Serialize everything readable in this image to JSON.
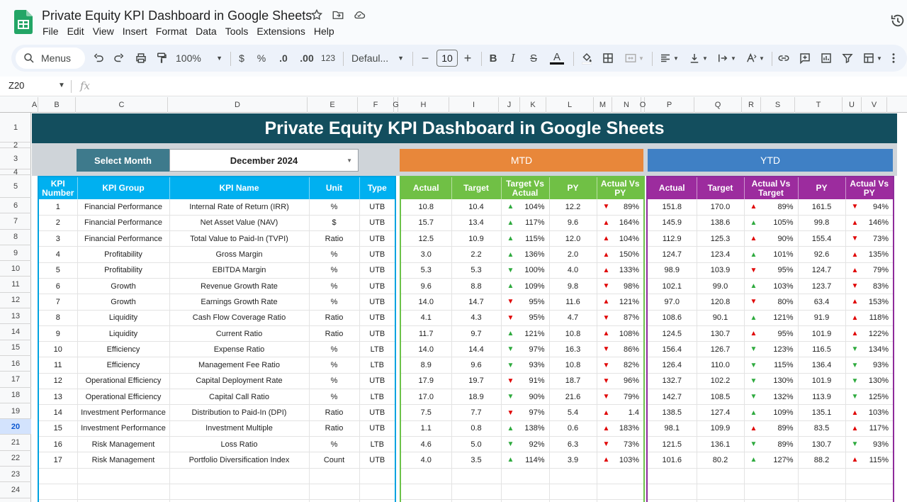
{
  "app": {
    "doc_title": "Private Equity KPI Dashboard in Google Sheets",
    "menus": [
      "File",
      "Edit",
      "View",
      "Insert",
      "Format",
      "Data",
      "Tools",
      "Extensions",
      "Help"
    ]
  },
  "toolbar": {
    "search_label": "Menus",
    "zoom": "100%",
    "currency": "$",
    "percent": "%",
    "decimal_decrease": ".0",
    "decimal_increase": ".00",
    "number_format": "123",
    "font": "Defaul...",
    "font_size": "10"
  },
  "formula_bar": {
    "cell_ref": "Z20",
    "fx": "fx"
  },
  "columns": [
    "A",
    "B",
    "C",
    "D",
    "E",
    "F",
    "G",
    "H",
    "I",
    "J",
    "K",
    "L",
    "M",
    "N",
    "O",
    "P",
    "Q",
    "R",
    "S",
    "T",
    "U",
    "V"
  ],
  "rows": [
    "1",
    "2",
    "3",
    "4",
    "5",
    "6",
    "7",
    "8",
    "9",
    "10",
    "11",
    "12",
    "13",
    "14",
    "15",
    "16",
    "17",
    "18",
    "19",
    "20",
    "21",
    "22",
    "23",
    "24"
  ],
  "active_row": "20",
  "dashboard": {
    "title": "Private Equity KPI Dashboard in Google Sheets",
    "select_month_label": "Select Month",
    "month": "December 2024",
    "mtd_label": "MTD",
    "ytd_label": "YTD",
    "kpi_headers": [
      "KPI Number",
      "KPI Group",
      "KPI Name",
      "Unit",
      "Type"
    ],
    "mtd_headers": [
      "Actual",
      "Target",
      "Target Vs Actual",
      "PY",
      "Actual Vs PY"
    ],
    "ytd_headers": [
      "Actual",
      "Target",
      "Actual Vs Target",
      "PY",
      "Actual Vs PY"
    ],
    "colors": {
      "banner": "#134e5e",
      "mtd": "#e8873a",
      "ytd": "#3f80c5",
      "kpi_header": "#00b0f0",
      "mtd_header": "#70c045",
      "ytd_header": "#9c2c9e",
      "up_red": "#e00000",
      "up_green": "#2eaa3e"
    },
    "kpis": [
      {
        "num": "1",
        "group": "Financial Performance",
        "name": "Internal Rate of Return (IRR)",
        "unit": "%",
        "type": "UTB",
        "m_actual": "10.8",
        "m_target": "10.4",
        "m_tva": "104%",
        "m_tva_dir": "up-green",
        "m_py": "12.2",
        "m_avp": "89%",
        "m_avp_dir": "down-red",
        "y_actual": "151.8",
        "y_target": "170.0",
        "y_avt": "89%",
        "y_avt_dir": "up-red",
        "y_py": "161.5",
        "y_avp": "94%",
        "y_avp_dir": "down-red"
      },
      {
        "num": "2",
        "group": "Financial Performance",
        "name": "Net Asset Value (NAV)",
        "unit": "$",
        "type": "UTB",
        "m_actual": "15.7",
        "m_target": "13.4",
        "m_tva": "117%",
        "m_tva_dir": "up-green",
        "m_py": "9.6",
        "m_avp": "164%",
        "m_avp_dir": "up-red",
        "y_actual": "145.9",
        "y_target": "138.6",
        "y_avt": "105%",
        "y_avt_dir": "up-green",
        "y_py": "99.8",
        "y_avp": "146%",
        "y_avp_dir": "up-red"
      },
      {
        "num": "3",
        "group": "Financial Performance",
        "name": "Total Value to Paid-In (TVPI)",
        "unit": "Ratio",
        "type": "UTB",
        "m_actual": "12.5",
        "m_target": "10.9",
        "m_tva": "115%",
        "m_tva_dir": "up-green",
        "m_py": "12.0",
        "m_avp": "104%",
        "m_avp_dir": "up-red",
        "y_actual": "112.9",
        "y_target": "125.3",
        "y_avt": "90%",
        "y_avt_dir": "up-red",
        "y_py": "155.4",
        "y_avp": "73%",
        "y_avp_dir": "down-red"
      },
      {
        "num": "4",
        "group": "Profitability",
        "name": "Gross Margin",
        "unit": "%",
        "type": "UTB",
        "m_actual": "3.0",
        "m_target": "2.2",
        "m_tva": "136%",
        "m_tva_dir": "up-green",
        "m_py": "2.0",
        "m_avp": "150%",
        "m_avp_dir": "up-red",
        "y_actual": "124.7",
        "y_target": "123.4",
        "y_avt": "101%",
        "y_avt_dir": "up-green",
        "y_py": "92.6",
        "y_avp": "135%",
        "y_avp_dir": "up-red"
      },
      {
        "num": "5",
        "group": "Profitability",
        "name": "EBITDA Margin",
        "unit": "%",
        "type": "UTB",
        "m_actual": "5.3",
        "m_target": "5.3",
        "m_tva": "100%",
        "m_tva_dir": "down-green",
        "m_py": "4.0",
        "m_avp": "133%",
        "m_avp_dir": "up-red",
        "y_actual": "98.9",
        "y_target": "103.9",
        "y_avt": "95%",
        "y_avt_dir": "down-red",
        "y_py": "124.7",
        "y_avp": "79%",
        "y_avp_dir": "up-red"
      },
      {
        "num": "6",
        "group": "Growth",
        "name": "Revenue Growth Rate",
        "unit": "%",
        "type": "UTB",
        "m_actual": "9.6",
        "m_target": "8.8",
        "m_tva": "109%",
        "m_tva_dir": "up-green",
        "m_py": "9.8",
        "m_avp": "98%",
        "m_avp_dir": "down-red",
        "y_actual": "102.1",
        "y_target": "99.0",
        "y_avt": "103%",
        "y_avt_dir": "up-green",
        "y_py": "123.7",
        "y_avp": "83%",
        "y_avp_dir": "down-red"
      },
      {
        "num": "7",
        "group": "Growth",
        "name": "Earnings Growth Rate",
        "unit": "%",
        "type": "UTB",
        "m_actual": "14.0",
        "m_target": "14.7",
        "m_tva": "95%",
        "m_tva_dir": "down-red",
        "m_py": "11.6",
        "m_avp": "121%",
        "m_avp_dir": "up-red",
        "y_actual": "97.0",
        "y_target": "120.8",
        "y_avt": "80%",
        "y_avt_dir": "down-red",
        "y_py": "63.4",
        "y_avp": "153%",
        "y_avp_dir": "up-red"
      },
      {
        "num": "8",
        "group": "Liquidity",
        "name": "Cash Flow Coverage Ratio",
        "unit": "Ratio",
        "type": "UTB",
        "m_actual": "4.1",
        "m_target": "4.3",
        "m_tva": "95%",
        "m_tva_dir": "down-red",
        "m_py": "4.7",
        "m_avp": "87%",
        "m_avp_dir": "down-red",
        "y_actual": "108.6",
        "y_target": "90.1",
        "y_avt": "121%",
        "y_avt_dir": "up-green",
        "y_py": "91.9",
        "y_avp": "118%",
        "y_avp_dir": "up-red"
      },
      {
        "num": "9",
        "group": "Liquidity",
        "name": "Current Ratio",
        "unit": "Ratio",
        "type": "UTB",
        "m_actual": "11.7",
        "m_target": "9.7",
        "m_tva": "121%",
        "m_tva_dir": "up-green",
        "m_py": "10.8",
        "m_avp": "108%",
        "m_avp_dir": "up-red",
        "y_actual": "124.5",
        "y_target": "130.7",
        "y_avt": "95%",
        "y_avt_dir": "up-red",
        "y_py": "101.9",
        "y_avp": "122%",
        "y_avp_dir": "up-red"
      },
      {
        "num": "10",
        "group": "Efficiency",
        "name": "Expense Ratio",
        "unit": "%",
        "type": "LTB",
        "m_actual": "14.0",
        "m_target": "14.4",
        "m_tva": "97%",
        "m_tva_dir": "down-green",
        "m_py": "16.3",
        "m_avp": "86%",
        "m_avp_dir": "down-red",
        "y_actual": "156.4",
        "y_target": "126.7",
        "y_avt": "123%",
        "y_avt_dir": "down-green",
        "y_py": "116.5",
        "y_avp": "134%",
        "y_avp_dir": "down-green"
      },
      {
        "num": "11",
        "group": "Efficiency",
        "name": "Management Fee Ratio",
        "unit": "%",
        "type": "LTB",
        "m_actual": "8.9",
        "m_target": "9.6",
        "m_tva": "93%",
        "m_tva_dir": "down-green",
        "m_py": "10.8",
        "m_avp": "82%",
        "m_avp_dir": "down-red",
        "y_actual": "126.4",
        "y_target": "110.0",
        "y_avt": "115%",
        "y_avt_dir": "down-green",
        "y_py": "136.4",
        "y_avp": "93%",
        "y_avp_dir": "down-green"
      },
      {
        "num": "12",
        "group": "Operational Efficiency",
        "name": "Capital Deployment Rate",
        "unit": "%",
        "type": "UTB",
        "m_actual": "17.9",
        "m_target": "19.7",
        "m_tva": "91%",
        "m_tva_dir": "down-red",
        "m_py": "18.7",
        "m_avp": "96%",
        "m_avp_dir": "down-red",
        "y_actual": "132.7",
        "y_target": "102.2",
        "y_avt": "130%",
        "y_avt_dir": "down-green",
        "y_py": "101.9",
        "y_avp": "130%",
        "y_avp_dir": "down-green"
      },
      {
        "num": "13",
        "group": "Operational Efficiency",
        "name": "Capital Call Ratio",
        "unit": "%",
        "type": "LTB",
        "m_actual": "17.0",
        "m_target": "18.9",
        "m_tva": "90%",
        "m_tva_dir": "down-green",
        "m_py": "21.6",
        "m_avp": "79%",
        "m_avp_dir": "down-red",
        "y_actual": "142.7",
        "y_target": "108.5",
        "y_avt": "132%",
        "y_avt_dir": "down-green",
        "y_py": "113.9",
        "y_avp": "125%",
        "y_avp_dir": "down-green"
      },
      {
        "num": "14",
        "group": "Investment Performance",
        "name": "Distribution to Paid-In (DPI)",
        "unit": "Ratio",
        "type": "UTB",
        "m_actual": "7.5",
        "m_target": "7.7",
        "m_tva": "97%",
        "m_tva_dir": "down-red",
        "m_py": "5.4",
        "m_avp": "1.4",
        "m_avp_dir": "up-red",
        "y_actual": "138.5",
        "y_target": "127.4",
        "y_avt": "109%",
        "y_avt_dir": "up-green",
        "y_py": "135.1",
        "y_avp": "103%",
        "y_avp_dir": "up-red"
      },
      {
        "num": "15",
        "group": "Investment Performance",
        "name": "Investment Multiple",
        "unit": "Ratio",
        "type": "UTB",
        "m_actual": "1.1",
        "m_target": "0.8",
        "m_tva": "138%",
        "m_tva_dir": "up-green",
        "m_py": "0.6",
        "m_avp": "183%",
        "m_avp_dir": "up-red",
        "y_actual": "98.1",
        "y_target": "109.9",
        "y_avt": "89%",
        "y_avt_dir": "up-red",
        "y_py": "83.5",
        "y_avp": "117%",
        "y_avp_dir": "up-red"
      },
      {
        "num": "16",
        "group": "Risk Management",
        "name": "Loss Ratio",
        "unit": "%",
        "type": "LTB",
        "m_actual": "4.6",
        "m_target": "5.0",
        "m_tva": "92%",
        "m_tva_dir": "down-green",
        "m_py": "6.3",
        "m_avp": "73%",
        "m_avp_dir": "down-red",
        "y_actual": "121.5",
        "y_target": "136.1",
        "y_avt": "89%",
        "y_avt_dir": "down-green",
        "y_py": "130.7",
        "y_avp": "93%",
        "y_avp_dir": "down-green"
      },
      {
        "num": "17",
        "group": "Risk Management",
        "name": "Portfolio Diversification Index",
        "unit": "Count",
        "type": "UTB",
        "m_actual": "4.0",
        "m_target": "3.5",
        "m_tva": "114%",
        "m_tva_dir": "up-green",
        "m_py": "3.9",
        "m_avp": "103%",
        "m_avp_dir": "up-red",
        "y_actual": "101.6",
        "y_target": "80.2",
        "y_avt": "127%",
        "y_avt_dir": "up-green",
        "y_py": "88.2",
        "y_avp": "115%",
        "y_avp_dir": "up-red"
      }
    ]
  }
}
